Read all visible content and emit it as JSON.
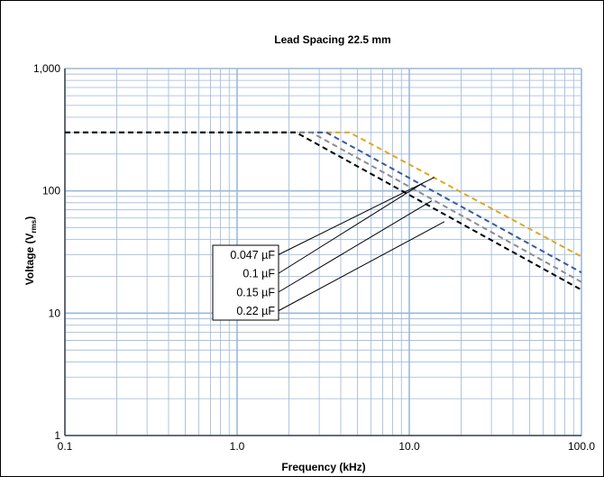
{
  "chart_data": {
    "type": "line",
    "title": "Lead Spacing 22.5 mm",
    "xlabel": "Frequency (kHz)",
    "ylabel_main": "Voltage (V",
    "ylabel_sub": "rms",
    "ylabel_close": ")",
    "x_scale": "log",
    "y_scale": "log",
    "xlim": [
      0.1,
      100
    ],
    "ylim": [
      1,
      1000
    ],
    "x_ticks": [
      {
        "value": 0.1,
        "label": "0.1"
      },
      {
        "value": 1,
        "label": "1.0"
      },
      {
        "value": 10,
        "label": "10.0"
      },
      {
        "value": 100,
        "label": "100.0"
      }
    ],
    "y_ticks": [
      {
        "value": 1,
        "label": "1"
      },
      {
        "value": 10,
        "label": "10"
      },
      {
        "value": 100,
        "label": "100"
      },
      {
        "value": 1000,
        "label": "1,000"
      }
    ],
    "grid": true,
    "legend": "annotation box, lower-left of plot area",
    "series": [
      {
        "name": "0.047 µF",
        "color": "#E0A81F",
        "x": [
          0.1,
          4.5,
          100
        ],
        "y": [
          300,
          300,
          29
        ]
      },
      {
        "name": "0.1 µF",
        "color": "#3A5A99",
        "x": [
          0.1,
          3.3,
          100
        ],
        "y": [
          300,
          300,
          21.5
        ]
      },
      {
        "name": "0.15 µF",
        "color": "#8C8C8C",
        "x": [
          0.1,
          2.7,
          100
        ],
        "y": [
          300,
          300,
          18
        ]
      },
      {
        "name": "0.22 µF",
        "color": "#000000",
        "x": [
          0.1,
          2.2,
          100
        ],
        "y": [
          300,
          300,
          15.5
        ]
      }
    ],
    "annotations": [
      {
        "label": "0.047 µF",
        "target": {
          "x": 14.0,
          "y": 129
        }
      },
      {
        "label": "0.1  µF",
        "target": {
          "x": 12.0,
          "y": 116
        }
      },
      {
        "label": "0.15  µF",
        "target": {
          "x": 13.5,
          "y": 83
        }
      },
      {
        "label": "0.22  µF",
        "target": {
          "x": 16.0,
          "y": 56
        }
      }
    ],
    "colors": {
      "grid": "#9DB7D7",
      "axis": "#000000"
    }
  }
}
